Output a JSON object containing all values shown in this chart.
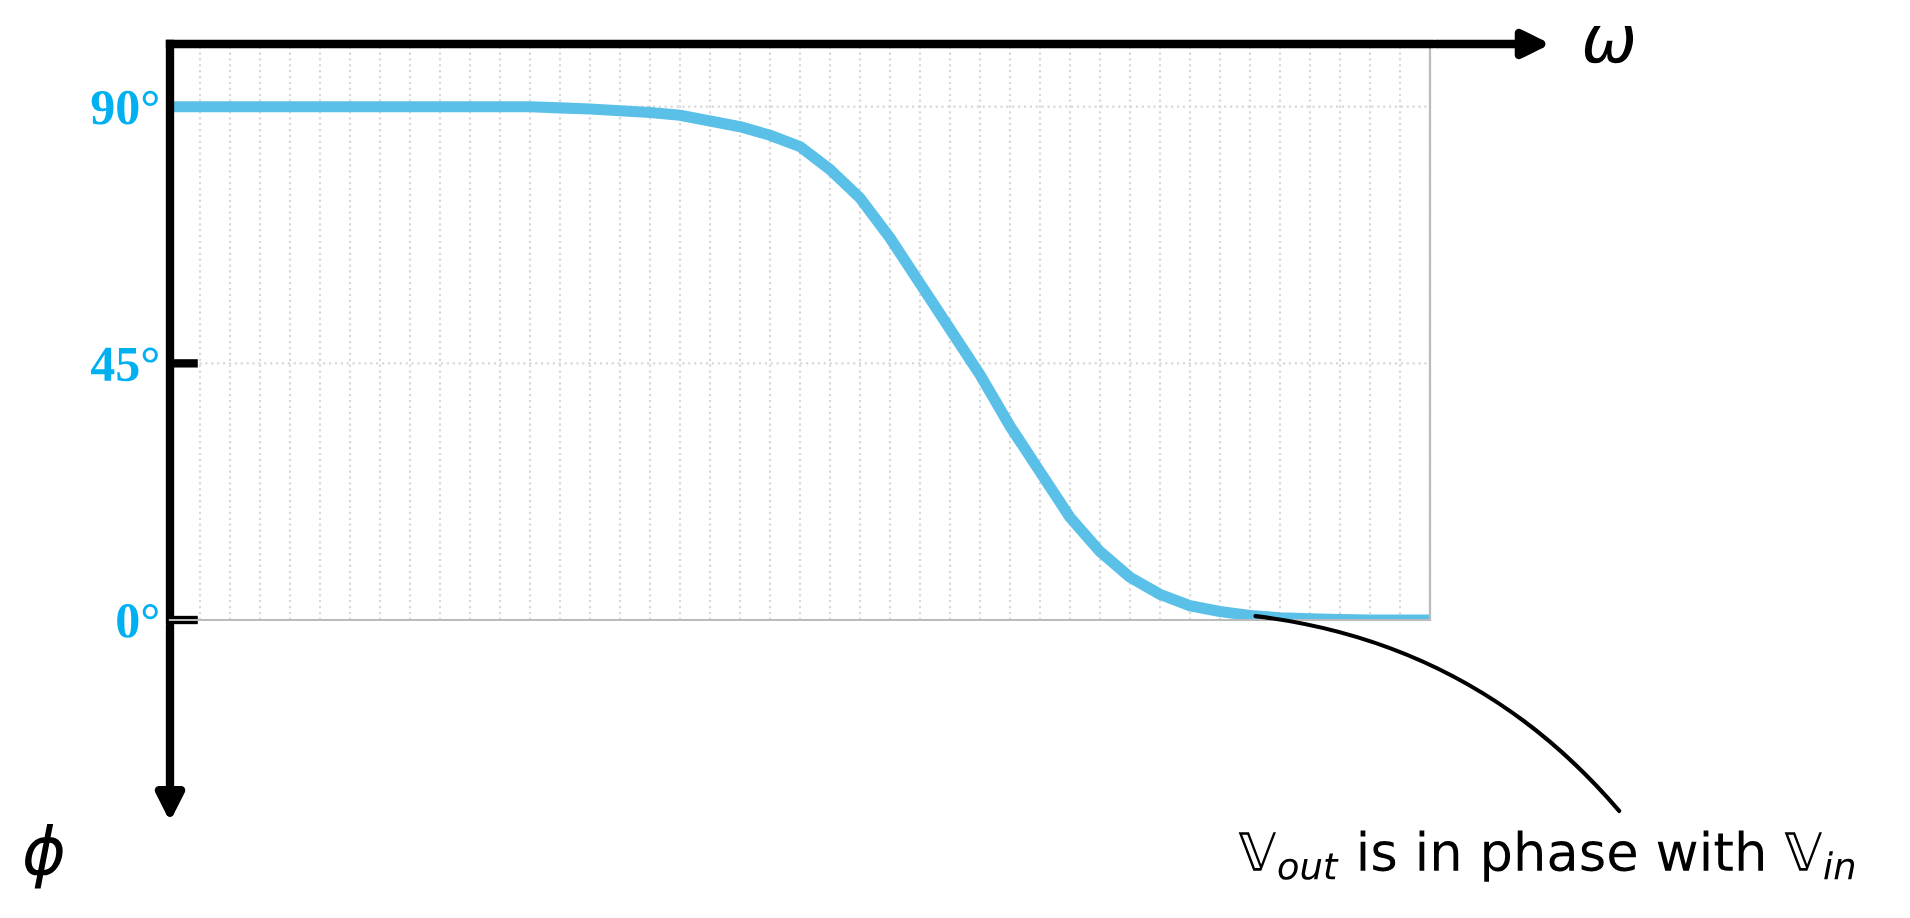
{
  "chart_data": {
    "type": "line",
    "xlabel": "ω",
    "ylabel": "ϕ",
    "categories": [
      null,
      null,
      null,
      null,
      null,
      null,
      null,
      null,
      null,
      null,
      null,
      null,
      null,
      null,
      null,
      null,
      null,
      null,
      null,
      null,
      null,
      null,
      null,
      null,
      null,
      null,
      null,
      null,
      null,
      null,
      null,
      null,
      null,
      null,
      null,
      null,
      null,
      null,
      null,
      null,
      null,
      null,
      null
    ],
    "series": [
      {
        "color": "#5bc0e8",
        "values": [
          90,
          90,
          90,
          90,
          90,
          90,
          90,
          90,
          90,
          90,
          90,
          90,
          90,
          89.8,
          89.6,
          89.3,
          89,
          88.5,
          87.5,
          86.5,
          85,
          83,
          79,
          74,
          67,
          59,
          51,
          43,
          34,
          26,
          18,
          12,
          7.5,
          4.5,
          2.5,
          1.5,
          0.8,
          0.4,
          0.2,
          0.1,
          0,
          0,
          0
        ]
      }
    ],
    "ylim": [
      0,
      101
    ],
    "yticks": [
      {
        "value": 0,
        "label": "0°"
      },
      {
        "value": 45,
        "label": "45°"
      },
      {
        "value": 90,
        "label": "90°"
      }
    ],
    "tick_labels": "y",
    "grid": true,
    "marker": "none",
    "line_style": "solid",
    "annotations": [
      "𝕍$_{out}$ is in phase with 𝕍$_{in}$"
    ]
  }
}
